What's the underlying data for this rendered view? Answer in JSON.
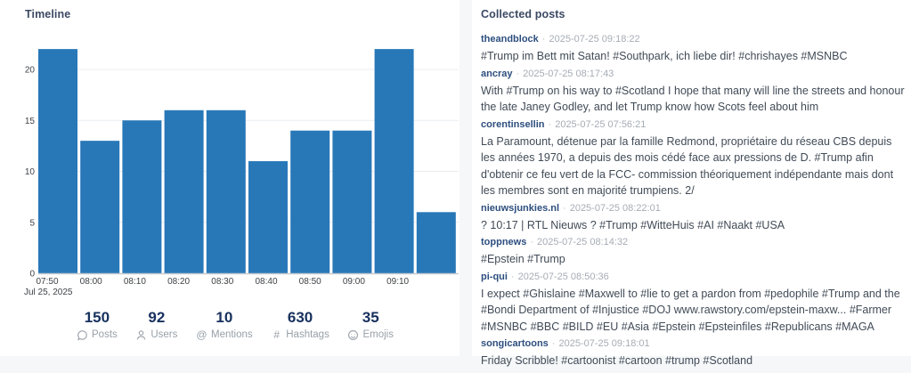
{
  "timeline": {
    "title": "Timeline",
    "chart_data": {
      "type": "bar",
      "title": "Timeline",
      "values": [
        22,
        13,
        15,
        16,
        16,
        11,
        14,
        14,
        22,
        6
      ],
      "x_ticks": [
        "07:50",
        "08:00",
        "08:10",
        "08:20",
        "08:30",
        "08:40",
        "08:50",
        "09:00",
        "09:10"
      ],
      "x_date_label": "Jul 25, 2025",
      "y_ticks": [
        0,
        5,
        10,
        15,
        20
      ],
      "ylim": [
        0,
        23
      ],
      "xlabel": "",
      "ylabel": "",
      "grid": true,
      "legend": false,
      "bar_color": "#2878b8"
    }
  },
  "stats": [
    {
      "value": "150",
      "label": "Posts",
      "icon": "speech-bubble-icon"
    },
    {
      "value": "92",
      "label": "Users",
      "icon": "user-icon"
    },
    {
      "value": "10",
      "label": "Mentions",
      "icon": "at-sign-icon"
    },
    {
      "value": "630",
      "label": "Hashtags",
      "icon": "hash-icon"
    },
    {
      "value": "35",
      "label": "Emojis",
      "icon": "smiley-icon"
    }
  ],
  "collected": {
    "title": "Collected posts",
    "posts": [
      {
        "user": "theandblock",
        "time": "2025-07-25 09:18:22",
        "text": "#Trump im Bett mit Satan! #Southpark, ich liebe dir! #chrishayes #MSNBC"
      },
      {
        "user": "ancray",
        "time": "2025-07-25 08:17:43",
        "text": "With #Trump on his way to #Scotland I hope that many will line the streets and honour the late Janey Godley, and let Trump know how Scots feel about him"
      },
      {
        "user": "corentinsellin",
        "time": "2025-07-25 07:56:21",
        "text": "La Paramount, détenue par la famille Redmond, propriétaire du réseau CBS depuis les années 1970, a depuis des mois cédé face aux pressions de D. #Trump afin d'obtenir ce feu vert de la FCC- commission théoriquement indépendante mais dont les membres sont en majorité trumpiens. 2/"
      },
      {
        "user": "nieuwsjunkies.nl",
        "time": "2025-07-25 08:22:01",
        "text": "? 10:17 | RTL Nieuws ? #Trump #WitteHuis #AI #Naakt #USA"
      },
      {
        "user": "toppnews",
        "time": "2025-07-25 08:14:32",
        "text": "#Epstein #Trump"
      },
      {
        "user": "pi-qui",
        "time": "2025-07-25 08:50:36",
        "text": "I expect #Ghislaine #Maxwell to #lie to get a pardon from #pedophile #Trump and the #Bondi Department of #Injustice #DOJ www.rawstory.com/epstein-maxw... #Farmer #MSNBC #BBC #BILD #EU #Asia #Epstein #Epsteinfiles #Republicans #MAGA"
      },
      {
        "user": "songicartoons",
        "time": "2025-07-25 09:18:01",
        "text": "Friday Scribble! #cartoonist #cartoon #trump #Scotland"
      }
    ]
  },
  "colors": {
    "bar": "#2878b8",
    "panel_title": "#3b4a63",
    "stat_number": "#17305e",
    "username": "#2d4e7e",
    "timestamp": "#a6adb5",
    "body_text": "#414b57",
    "gridline": "#e9edf0",
    "axis_line": "#c6cbd1",
    "page_background": "#f5f7f9",
    "card_background": "#ffffff"
  }
}
